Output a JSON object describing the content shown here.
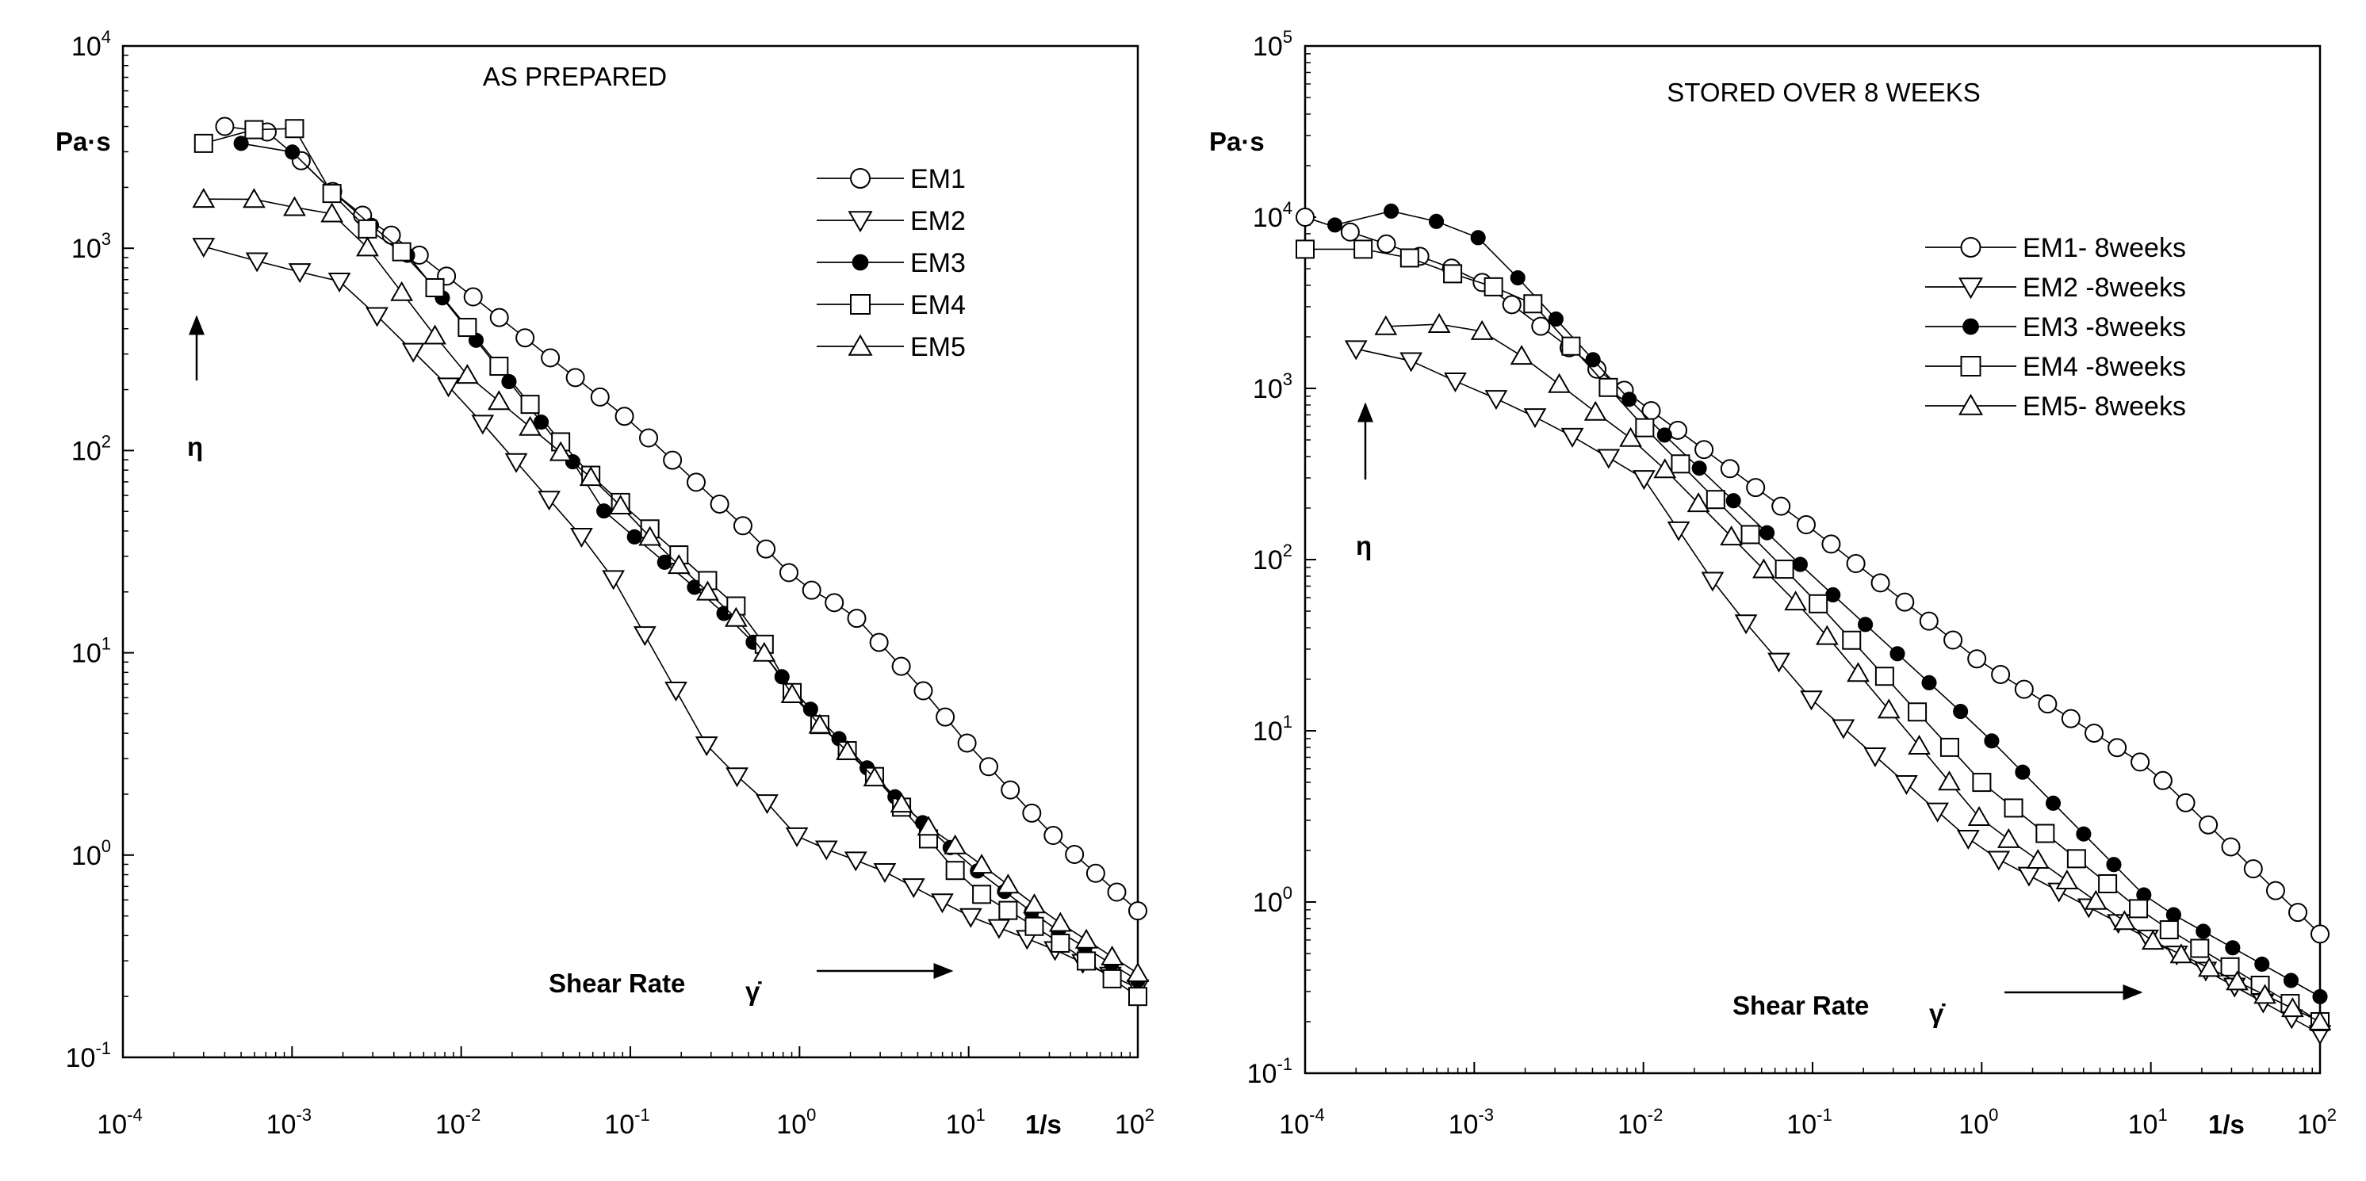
{
  "chart_data": [
    {
      "type": "scatter",
      "title": "AS PREPARED",
      "ylabel": "Pa·s",
      "eta_symbol": "η",
      "xlabel": "Shear Rate",
      "gamma_dot_symbol": "γ̇",
      "x_unit": "1/s",
      "xscale": "log",
      "yscale": "log",
      "xlim": [
        0.0001,
        100
      ],
      "ylim": [
        0.1,
        10000
      ],
      "x_ticks": [
        {
          "base": "10",
          "exp": "-4"
        },
        {
          "base": "10",
          "exp": "-3"
        },
        {
          "base": "10",
          "exp": "-2"
        },
        {
          "base": "10",
          "exp": "-1"
        },
        {
          "base": "10",
          "exp": "0"
        },
        {
          "base": "10",
          "exp": "1"
        },
        {
          "base": "10",
          "exp": "2"
        }
      ],
      "y_ticks": [
        {
          "base": "10",
          "exp": "-1"
        },
        {
          "base": "10",
          "exp": "0"
        },
        {
          "base": "10",
          "exp": "1"
        },
        {
          "base": "10",
          "exp": "2"
        },
        {
          "base": "10",
          "exp": "3"
        },
        {
          "base": "10",
          "exp": "4"
        }
      ],
      "series": [
        {
          "name": "EM1",
          "marker": "circle-open",
          "x_range": [
            0.0004,
            100
          ],
          "points": 38,
          "knots": [
            [
              0.0004,
              4000
            ],
            [
              0.0007,
              3800
            ],
            [
              0.001,
              3000
            ],
            [
              0.002,
              1700
            ],
            [
              0.005,
              1000
            ],
            [
              0.01,
              640
            ],
            [
              0.1,
              140
            ],
            [
              0.5,
              40
            ],
            [
              1,
              22
            ],
            [
              2,
              16
            ],
            [
              5,
              7
            ],
            [
              10,
              3.5
            ],
            [
              30,
              1.3
            ],
            [
              100,
              0.53
            ]
          ]
        },
        {
          "name": "EM2",
          "marker": "triangle-down-open",
          "x_range": [
            0.0003,
            100
          ],
          "points": 30,
          "knots": [
            [
              0.0003,
              1020
            ],
            [
              0.0006,
              870
            ],
            [
              0.001,
              780
            ],
            [
              0.002,
              680
            ],
            [
              0.01,
              180
            ],
            [
              0.07,
              28
            ],
            [
              0.3,
              3.2
            ],
            [
              0.7,
              1.7
            ],
            [
              1,
              1.2
            ],
            [
              3,
              0.85
            ],
            [
              10,
              0.5
            ],
            [
              30,
              0.35
            ],
            [
              100,
              0.22
            ]
          ]
        },
        {
          "name": "EM3",
          "marker": "circle-filled",
          "x_range": [
            0.0005,
            100
          ],
          "points": 30,
          "knots": [
            [
              0.0005,
              3300
            ],
            [
              0.001,
              3000
            ],
            [
              0.002,
              1700
            ],
            [
              0.005,
              900
            ],
            [
              0.05,
              80
            ],
            [
              0.07,
              50
            ],
            [
              0.3,
              18
            ],
            [
              0.5,
              12
            ],
            [
              1,
              6
            ],
            [
              4,
              1.8
            ],
            [
              10,
              0.9
            ],
            [
              30,
              0.45
            ],
            [
              100,
              0.24
            ]
          ]
        },
        {
          "name": "EM4",
          "marker": "square-open",
          "x_range": [
            0.0003,
            100
          ],
          "points": 32,
          "knots": [
            [
              0.0003,
              3300
            ],
            [
              0.0007,
              4000
            ],
            [
              0.001,
              4100
            ],
            [
              0.002,
              1500
            ],
            [
              0.005,
              900
            ],
            [
              0.05,
              85
            ],
            [
              0.1,
              50
            ],
            [
              0.5,
              15
            ],
            [
              1,
              5.5
            ],
            [
              3,
              2.3
            ],
            [
              10,
              0.7
            ],
            [
              30,
              0.4
            ],
            [
              100,
              0.2
            ]
          ]
        },
        {
          "name": "EM5",
          "marker": "triangle-up-open",
          "x_range": [
            0.0003,
            100
          ],
          "points": 32,
          "knots": [
            [
              0.0003,
              1750
            ],
            [
              0.0005,
              1800
            ],
            [
              0.001,
              1600
            ],
            [
              0.002,
              1450
            ],
            [
              0.01,
              250
            ],
            [
              0.07,
              65
            ],
            [
              0.15,
              33
            ],
            [
              0.5,
              13
            ],
            [
              1,
              5.5
            ],
            [
              5,
              1.5
            ],
            [
              10,
              1
            ],
            [
              30,
              0.5
            ],
            [
              100,
              0.26
            ]
          ]
        }
      ]
    },
    {
      "type": "scatter",
      "title": "STORED OVER  8 WEEKS",
      "ylabel": "Pa·s",
      "eta_symbol": "η",
      "xlabel": "Shear Rate",
      "gamma_dot_symbol": "γ̇",
      "x_unit": "1/s",
      "xscale": "log",
      "yscale": "log",
      "xlim": [
        0.0001,
        100
      ],
      "ylim": [
        0.1,
        100000
      ],
      "x_ticks": [
        {
          "base": "10",
          "exp": "-4"
        },
        {
          "base": "10",
          "exp": "-3"
        },
        {
          "base": "10",
          "exp": "-2"
        },
        {
          "base": "10",
          "exp": "-1"
        },
        {
          "base": "10",
          "exp": "0"
        },
        {
          "base": "10",
          "exp": "1"
        },
        {
          "base": "10",
          "exp": "2"
        }
      ],
      "y_ticks": [
        {
          "base": "10",
          "exp": "-1"
        },
        {
          "base": "10",
          "exp": "0"
        },
        {
          "base": "10",
          "exp": "1"
        },
        {
          "base": "10",
          "exp": "2"
        },
        {
          "base": "10",
          "exp": "3"
        },
        {
          "base": "10",
          "exp": "4"
        },
        {
          "base": "10",
          "exp": "5"
        }
      ],
      "series": [
        {
          "name": "EM1- 8weeks",
          "marker": "circle-open",
          "x_range": [
            0.0001,
            100
          ],
          "points": 40,
          "knots": [
            [
              0.0001,
              10000
            ],
            [
              0.0003,
              7000
            ],
            [
              0.001,
              4500
            ],
            [
              0.003,
              2000
            ],
            [
              0.01,
              800
            ],
            [
              0.1,
              150
            ],
            [
              1,
              25
            ],
            [
              10,
              6
            ],
            [
              100,
              0.65
            ]
          ]
        },
        {
          "name": "EM2 -8weeks",
          "marker": "triangle-down-open",
          "x_range": [
            0.0002,
            100
          ],
          "points": 30,
          "knots": [
            [
              0.0002,
              1700
            ],
            [
              0.0003,
              1800
            ],
            [
              0.0005,
              1300
            ],
            [
              0.001,
              1000
            ],
            [
              0.003,
              600
            ],
            [
              0.01,
              300
            ],
            [
              0.03,
              60
            ],
            [
              0.1,
              15
            ],
            [
              1,
              2
            ],
            [
              10,
              0.6
            ],
            [
              100,
              0.17
            ]
          ]
        },
        {
          "name": "EM3 -8weeks",
          "marker": "circle-filled",
          "x_range": [
            0.00015,
            100
          ],
          "points": 30,
          "knots": [
            [
              0.00015,
              9000
            ],
            [
              0.0003,
              11000
            ],
            [
              0.0005,
              10000
            ],
            [
              0.001,
              8000
            ],
            [
              0.002,
              4000
            ],
            [
              0.01,
              700
            ],
            [
              0.1,
              80
            ],
            [
              1,
              10
            ],
            [
              5,
              2
            ],
            [
              10,
              1
            ],
            [
              100,
              0.28
            ]
          ]
        },
        {
          "name": "EM4 -8weeks",
          "marker": "square-open",
          "x_range": [
            0.0001,
            100
          ],
          "points": 30,
          "knots": [
            [
              0.0001,
              6500
            ],
            [
              0.0003,
              6500
            ],
            [
              0.001,
              4200
            ],
            [
              0.002,
              3500
            ],
            [
              0.01,
              600
            ],
            [
              0.1,
              60
            ],
            [
              1,
              5
            ],
            [
              10,
              0.8
            ],
            [
              100,
              0.2
            ]
          ]
        },
        {
          "name": "EM5- 8weeks",
          "marker": "triangle-up-open",
          "x_range": [
            0.0003,
            100
          ],
          "points": 30,
          "knots": [
            [
              0.0003,
              2300
            ],
            [
              0.0005,
              2400
            ],
            [
              0.001,
              2300
            ],
            [
              0.002,
              1500
            ],
            [
              0.005,
              750
            ],
            [
              0.01,
              450
            ],
            [
              0.1,
              45
            ],
            [
              1,
              3
            ],
            [
              10,
              0.6
            ],
            [
              100,
              0.2
            ]
          ]
        }
      ]
    }
  ]
}
